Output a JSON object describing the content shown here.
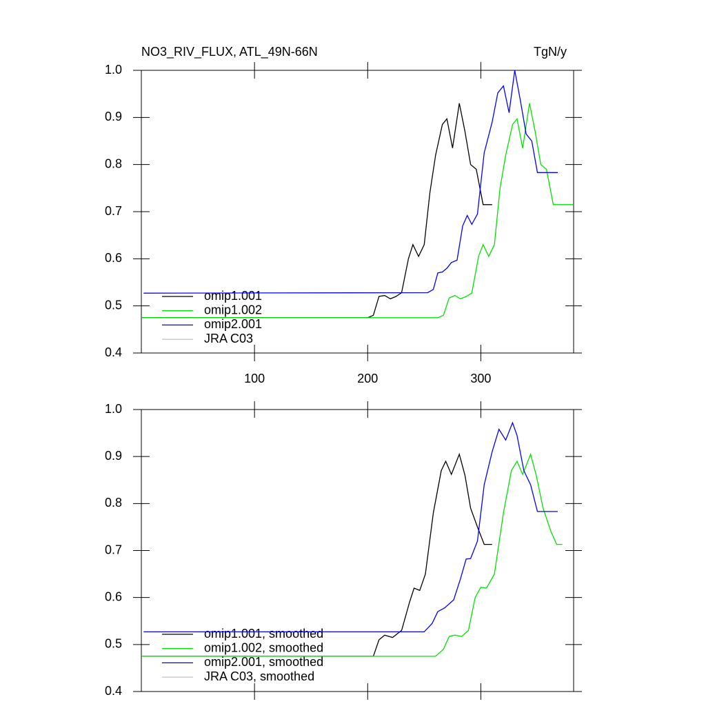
{
  "chart_data": [
    {
      "type": "line",
      "title": "NO3_RIV_FLUX, ATL_49N-66N",
      "units": "TgN/y",
      "xlim": [
        0,
        382
      ],
      "xticks": [
        100,
        200,
        300
      ],
      "ylim": [
        0.4,
        1
      ],
      "yticks": [
        0.4,
        0.5,
        0.6,
        0.7,
        0.8,
        0.9,
        {
          "value": 1,
          "label": "1.0"
        }
      ],
      "series": [
        {
          "name": "omip1.001",
          "color": "#000000",
          "x": [
            0,
            200,
            205,
            210,
            215,
            220,
            225,
            230,
            236,
            240,
            245,
            250,
            255,
            260,
            266,
            270,
            275,
            281,
            286,
            291,
            296,
            302,
            310
          ],
          "values": [
            0.475,
            0.475,
            0.48,
            0.52,
            0.522,
            0.515,
            0.52,
            0.528,
            0.6,
            0.63,
            0.605,
            0.63,
            0.74,
            0.82,
            0.885,
            0.897,
            0.835,
            0.93,
            0.87,
            0.8,
            0.79,
            0.715,
            0.715
          ]
        },
        {
          "name": "omip1.002",
          "color": "#00e000",
          "x": [
            0,
            262,
            267,
            272,
            277,
            282,
            287,
            292,
            298,
            302,
            307,
            312,
            317,
            322,
            328,
            332,
            337,
            343,
            348,
            353,
            358,
            364,
            372,
            382
          ],
          "values": [
            0.475,
            0.475,
            0.48,
            0.517,
            0.522,
            0.515,
            0.52,
            0.527,
            0.605,
            0.63,
            0.605,
            0.63,
            0.75,
            0.82,
            0.885,
            0.897,
            0.835,
            0.93,
            0.87,
            0.8,
            0.79,
            0.715,
            0.715,
            0.715
          ]
        },
        {
          "name": "omip2.001",
          "color": "#0000ff",
          "x": [
            2,
            253,
            258,
            262,
            266,
            270,
            274,
            279,
            284,
            288,
            292,
            297,
            303,
            310,
            315,
            320,
            325,
            330,
            335,
            340,
            345,
            350,
            368
          ],
          "values": [
            0.527,
            0.528,
            0.535,
            0.57,
            0.572,
            0.58,
            0.592,
            0.597,
            0.67,
            0.692,
            0.673,
            0.695,
            0.825,
            0.89,
            0.952,
            0.967,
            0.91,
            1.0,
            0.935,
            0.865,
            0.85,
            0.783,
            0.783
          ]
        },
        {
          "name": "JRA C03",
          "color": "#c0c0c0",
          "x": [],
          "values": []
        }
      ]
    },
    {
      "type": "line",
      "xlim": [
        0,
        382
      ],
      "xticks": [
        100,
        200,
        300
      ],
      "ylim": [
        0.4,
        1
      ],
      "yticks": [
        0.4,
        0.5,
        0.6,
        0.7,
        0.8,
        0.9,
        {
          "value": 1,
          "label": "1.0"
        }
      ],
      "series": [
        {
          "name": "omip1.001, smoothed",
          "color": "#000000",
          "x": [
            0,
            205,
            210,
            215,
            222,
            230,
            237,
            241,
            246,
            251,
            258,
            265,
            269,
            274,
            281,
            286,
            291,
            297,
            303,
            310
          ],
          "values": [
            0.475,
            0.475,
            0.51,
            0.52,
            0.515,
            0.53,
            0.59,
            0.62,
            0.615,
            0.65,
            0.78,
            0.87,
            0.89,
            0.862,
            0.905,
            0.86,
            0.79,
            0.75,
            0.713,
            0.713
          ]
        },
        {
          "name": "omip1.002, smoothed",
          "color": "#00e000",
          "x": [
            0,
            260,
            267,
            272,
            277,
            283,
            289,
            295,
            300,
            305,
            312,
            320,
            327,
            332,
            337,
            344,
            349,
            355,
            362,
            367,
            372
          ],
          "values": [
            0.475,
            0.475,
            0.49,
            0.517,
            0.52,
            0.517,
            0.53,
            0.6,
            0.622,
            0.62,
            0.65,
            0.78,
            0.87,
            0.89,
            0.862,
            0.905,
            0.86,
            0.79,
            0.74,
            0.713,
            0.713
          ]
        },
        {
          "name": "omip2.001, smoothed",
          "color": "#0000ff",
          "x": [
            2,
            250,
            257,
            262,
            268,
            276,
            282,
            287,
            291,
            297,
            303,
            310,
            316,
            322,
            328,
            332,
            338,
            344,
            350,
            368
          ],
          "values": [
            0.527,
            0.527,
            0.545,
            0.57,
            0.578,
            0.595,
            0.64,
            0.682,
            0.683,
            0.72,
            0.84,
            0.91,
            0.958,
            0.935,
            0.972,
            0.945,
            0.87,
            0.84,
            0.783,
            0.783
          ]
        },
        {
          "name": "JRA C03, smoothed",
          "color": "#c0c0c0",
          "x": [],
          "values": []
        }
      ]
    }
  ]
}
